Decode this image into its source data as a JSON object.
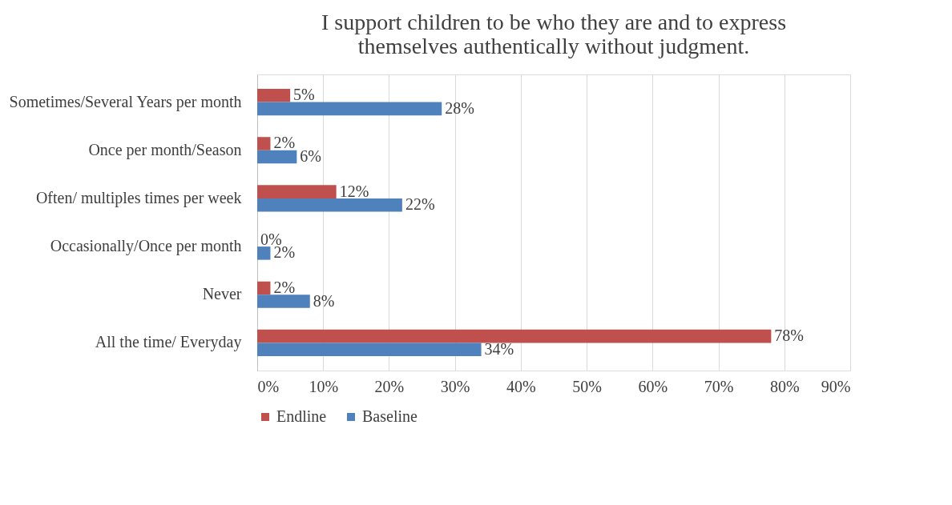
{
  "chart_data": {
    "type": "bar",
    "orientation": "horizontal",
    "title": "I support children to be who they are and to express themselves authentically without judgment.",
    "categories": [
      "Sometimes/Several Years per month",
      "Once per month/Season",
      "Often/ multiples times per week",
      "Occasionally/Once per month",
      "Never",
      "All the time/ Everyday"
    ],
    "series": [
      {
        "name": "Endline",
        "color": "#c0504d",
        "values": [
          5,
          2,
          12,
          0,
          2,
          78
        ],
        "value_labels": [
          "5%",
          "2%",
          "12%",
          "0%",
          "2%",
          "78%"
        ]
      },
      {
        "name": "Baseline",
        "color": "#4f81bd",
        "values": [
          28,
          6,
          22,
          2,
          8,
          34
        ],
        "value_labels": [
          "28%",
          "6%",
          "22%",
          "2%",
          "8%",
          "34%"
        ]
      }
    ],
    "xlim": [
      0,
      90
    ],
    "xticks": [
      {
        "value": 0,
        "label": "0%"
      },
      {
        "value": 10,
        "label": "10%"
      },
      {
        "value": 20,
        "label": "20%"
      },
      {
        "value": 30,
        "label": "30%"
      },
      {
        "value": 40,
        "label": "40%"
      },
      {
        "value": 50,
        "label": "50%"
      },
      {
        "value": 60,
        "label": "60%"
      },
      {
        "value": 70,
        "label": "70%"
      },
      {
        "value": 80,
        "label": "80%"
      },
      {
        "value": 90,
        "label": "90%"
      }
    ],
    "grid": "x",
    "legend": "bottom"
  }
}
